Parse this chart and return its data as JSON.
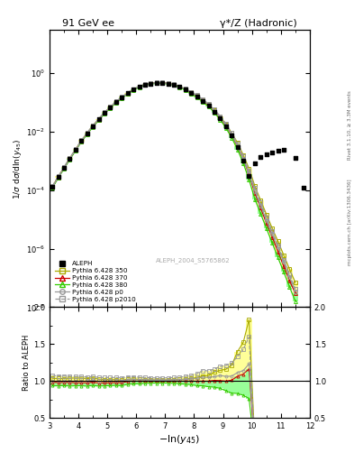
{
  "title_left": "91 GeV ee",
  "title_right": "γ*/Z (Hadronic)",
  "right_label_top": "Rivet 3.1.10, ≥ 3.3M events",
  "right_label_bot": "mcplots.cern.ch [arXiv:1306.3436]",
  "watermark": "ALEPH_2004_S5765862",
  "ylabel": "1/σ dσ/dln(y_{45})",
  "ylabel_ratio": "Ratio to ALEPH",
  "xlim": [
    3.0,
    12.0
  ],
  "ylim_log": [
    1e-08,
    30.0
  ],
  "ylim_ratio": [
    0.5,
    2.0
  ],
  "aleph_x": [
    3.1,
    3.3,
    3.5,
    3.7,
    3.9,
    4.1,
    4.3,
    4.5,
    4.7,
    4.9,
    5.1,
    5.3,
    5.5,
    5.7,
    5.9,
    6.1,
    6.3,
    6.5,
    6.7,
    6.9,
    7.1,
    7.3,
    7.5,
    7.7,
    7.9,
    8.1,
    8.3,
    8.5,
    8.7,
    8.9,
    9.1,
    9.3,
    9.5,
    9.7,
    9.9,
    10.1,
    10.3,
    10.5,
    10.7,
    10.9,
    11.1,
    11.5,
    11.8
  ],
  "aleph_y": [
    0.00013,
    0.00028,
    0.00058,
    0.0012,
    0.0024,
    0.0048,
    0.0088,
    0.0155,
    0.0265,
    0.044,
    0.069,
    0.103,
    0.148,
    0.205,
    0.272,
    0.342,
    0.402,
    0.442,
    0.462,
    0.462,
    0.442,
    0.402,
    0.342,
    0.282,
    0.212,
    0.162,
    0.112,
    0.079,
    0.049,
    0.0288,
    0.0155,
    0.0074,
    0.003,
    0.00105,
    0.0003,
    0.00085,
    0.00135,
    0.00165,
    0.0019,
    0.0022,
    0.0024,
    0.0013,
    0.00012
  ],
  "mc_x": [
    3.1,
    3.3,
    3.5,
    3.7,
    3.9,
    4.1,
    4.3,
    4.5,
    4.7,
    4.9,
    5.1,
    5.3,
    5.5,
    5.7,
    5.9,
    6.1,
    6.3,
    6.5,
    6.7,
    6.9,
    7.1,
    7.3,
    7.5,
    7.7,
    7.9,
    8.1,
    8.3,
    8.5,
    8.7,
    8.9,
    9.1,
    9.3,
    9.5,
    9.7,
    9.9,
    10.1,
    10.3,
    10.5,
    10.7,
    10.9,
    11.1,
    11.3,
    11.5
  ],
  "mc350_y": [
    0.000135,
    0.00029,
    0.0006,
    0.00125,
    0.0025,
    0.005,
    0.0091,
    0.0162,
    0.0272,
    0.045,
    0.0705,
    0.105,
    0.15,
    0.21,
    0.28,
    0.35,
    0.41,
    0.45,
    0.47,
    0.47,
    0.45,
    0.41,
    0.35,
    0.29,
    0.22,
    0.17,
    0.12,
    0.085,
    0.055,
    0.033,
    0.018,
    0.009,
    0.0042,
    0.0016,
    0.00055,
    0.00014,
    4.5e-05,
    1.5e-05,
    5e-06,
    1.8e-06,
    6e-07,
    2e-07,
    7e-08
  ],
  "mc370_y": [
    0.000128,
    0.000275,
    0.00057,
    0.00118,
    0.00235,
    0.0047,
    0.0086,
    0.0153,
    0.0258,
    0.043,
    0.0675,
    0.101,
    0.145,
    0.204,
    0.272,
    0.342,
    0.402,
    0.442,
    0.462,
    0.462,
    0.442,
    0.402,
    0.342,
    0.282,
    0.212,
    0.162,
    0.112,
    0.079,
    0.0495,
    0.029,
    0.0155,
    0.0075,
    0.0032,
    0.00115,
    0.00035,
    8e-05,
    2.5e-05,
    7.5e-06,
    2.5e-06,
    8e-07,
    2.5e-07,
    8e-08,
    3e-08
  ],
  "mc380_y": [
    0.000122,
    0.000262,
    0.000545,
    0.00112,
    0.00225,
    0.0045,
    0.0082,
    0.0146,
    0.0247,
    0.0412,
    0.0648,
    0.097,
    0.139,
    0.196,
    0.262,
    0.33,
    0.39,
    0.43,
    0.45,
    0.45,
    0.43,
    0.39,
    0.33,
    0.27,
    0.202,
    0.152,
    0.105,
    0.073,
    0.045,
    0.026,
    0.0135,
    0.0062,
    0.0025,
    0.00085,
    0.00023,
    5e-05,
    1.6e-05,
    5e-06,
    1.6e-06,
    5e-07,
    1.6e-07,
    5e-08,
    1.6e-08
  ],
  "mcp0_y": [
    0.00013,
    0.00028,
    0.00058,
    0.0012,
    0.0024,
    0.0048,
    0.0088,
    0.0157,
    0.0264,
    0.044,
    0.069,
    0.103,
    0.148,
    0.208,
    0.277,
    0.348,
    0.408,
    0.448,
    0.468,
    0.468,
    0.448,
    0.408,
    0.348,
    0.288,
    0.218,
    0.168,
    0.118,
    0.083,
    0.052,
    0.031,
    0.0165,
    0.0079,
    0.00335,
    0.0012,
    0.00037,
    9.5e-05,
    3e-05,
    9.5e-06,
    3.2e-06,
    1.1e-06,
    3.5e-07,
    1.1e-07,
    3.5e-08
  ],
  "mcp2010_y": [
    0.00014,
    0.0003,
    0.00062,
    0.00128,
    0.00255,
    0.0051,
    0.0093,
    0.0165,
    0.0278,
    0.0462,
    0.0725,
    0.108,
    0.155,
    0.217,
    0.288,
    0.36,
    0.422,
    0.462,
    0.482,
    0.482,
    0.462,
    0.422,
    0.36,
    0.3,
    0.228,
    0.178,
    0.128,
    0.09,
    0.057,
    0.0345,
    0.0188,
    0.0092,
    0.004,
    0.0015,
    0.00048,
    0.00012,
    3.8e-05,
    1.2e-05,
    4e-06,
    1.3e-06,
    4.2e-07,
    1.3e-07,
    4.2e-08
  ],
  "color_350": "#aaaa00",
  "color_370": "#cc0000",
  "color_380": "#33cc00",
  "color_p0": "#999999",
  "color_p2010": "#999999",
  "band_yellow": "#ffff99",
  "band_green": "#99ff99"
}
